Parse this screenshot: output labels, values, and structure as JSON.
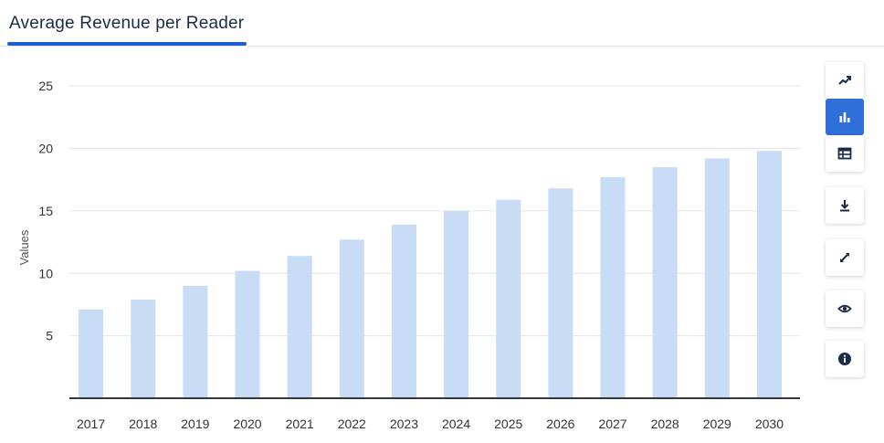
{
  "header": {
    "tab_title": "Average Revenue per Reader"
  },
  "colors": {
    "bar": "#c8dcf5",
    "accent": "#2f6fd9",
    "icon": "#1a2b4a",
    "grid": "#e3e6ea",
    "axis": "#33383d",
    "text": "#333333"
  },
  "toolbar": {
    "buttons": [
      {
        "name": "line-chart-button",
        "icon": "trend-up-icon",
        "active": false
      },
      {
        "name": "bar-chart-button",
        "icon": "bar-chart-icon",
        "active": true
      },
      {
        "name": "table-view-button",
        "icon": "table-icon",
        "active": false
      },
      {
        "name": "download-button",
        "icon": "download-icon",
        "active": false
      },
      {
        "name": "fullscreen-button",
        "icon": "expand-icon",
        "active": false
      },
      {
        "name": "view-button",
        "icon": "eye-icon",
        "active": false
      },
      {
        "name": "info-button",
        "icon": "info-icon",
        "active": false
      }
    ]
  },
  "chart_data": {
    "type": "bar",
    "categories": [
      "2017",
      "2018",
      "2019",
      "2020",
      "2021",
      "2022",
      "2023",
      "2024",
      "2025",
      "2026",
      "2027",
      "2028",
      "2029",
      "2030"
    ],
    "values": [
      7.1,
      7.9,
      9.0,
      10.2,
      11.4,
      12.7,
      13.9,
      15.0,
      15.9,
      16.8,
      17.7,
      18.5,
      19.2,
      19.8
    ],
    "ylabel": "Values",
    "xlabel": "",
    "ylim": [
      0,
      27.5
    ],
    "yticks": [
      5,
      10,
      15,
      20,
      25
    ],
    "grid": true
  }
}
